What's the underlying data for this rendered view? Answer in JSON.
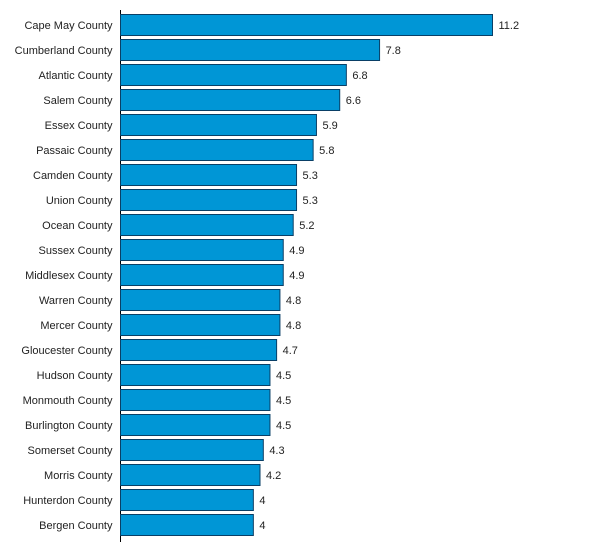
{
  "chart_data": {
    "type": "bar",
    "orientation": "horizontal",
    "categories": [
      "Cape May County",
      "Cumberland County",
      "Atlantic County",
      "Salem County",
      "Essex County",
      "Passaic County",
      "Camden County",
      "Union County",
      "Ocean County",
      "Sussex County",
      "Middlesex County",
      "Warren County",
      "Mercer County",
      "Gloucester County",
      "Hudson County",
      "Monmouth County",
      "Burlington County",
      "Somerset County",
      "Morris County",
      "Hunterdon County",
      "Bergen County"
    ],
    "values": [
      11.2,
      7.8,
      6.8,
      6.6,
      5.9,
      5.8,
      5.3,
      5.3,
      5.2,
      4.9,
      4.9,
      4.8,
      4.8,
      4.7,
      4.5,
      4.5,
      4.5,
      4.3,
      4.2,
      4,
      4
    ],
    "value_labels": [
      "11.2",
      "7.8",
      "6.8",
      "6.6",
      "5.9",
      "5.8",
      "5.3",
      "5.3",
      "5.2",
      "4.9",
      "4.9",
      "4.8",
      "4.8",
      "4.7",
      "4.5",
      "4.5",
      "4.5",
      "4.3",
      "4.2",
      "4",
      "4"
    ],
    "title": "",
    "xlabel": "",
    "ylabel": "",
    "xlim": [
      0,
      11.2
    ],
    "grid": false,
    "legend": "none",
    "bar_color": "#0096d6",
    "bar_edge_color": "#0a3f66"
  }
}
